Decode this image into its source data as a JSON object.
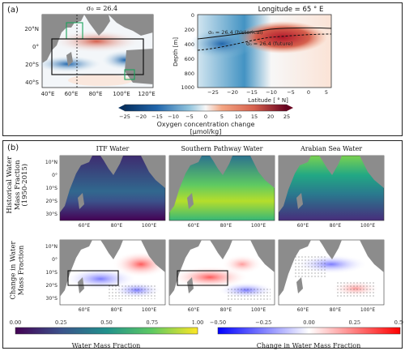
{
  "figure": {
    "panel_a_tag": "(a)",
    "panel_b_tag": "(b)"
  },
  "panel_a": {
    "map_title": "σ₀ = 26.4",
    "map_lat_ticks": [
      "20°N",
      "0°",
      "20°S",
      "40°S"
    ],
    "map_lon_ticks": [
      "40°E",
      "60°E",
      "80°E",
      "100°E",
      "120°E"
    ],
    "section_title": "Longitude = 65 ° E",
    "section_xlabel": "Latitude [ ° N]",
    "section_ylabel": "Depth [m]",
    "section_x_ticks": [
      "−25",
      "−20",
      "−15",
      "−10",
      "−5",
      "0",
      "5"
    ],
    "section_y_ticks": [
      "0",
      "200",
      "400",
      "600",
      "800",
      "1000"
    ],
    "label_historical": "σ₀ = 26.4 (historical)",
    "label_future": "σ₀ = 26.4 (future)",
    "colorbar_ticks": [
      "−25",
      "−20",
      "−15",
      "−10",
      "−5",
      "0",
      "5",
      "10",
      "15",
      "20",
      "25"
    ],
    "colorbar_label_1": "Oxygen concentration change",
    "colorbar_label_2": "[μmol/kg]"
  },
  "panel_b": {
    "columns": [
      "ITF Water",
      "Southern Pathway Water",
      "Arabian Sea Water"
    ],
    "row1_label_1": "Historical Water",
    "row1_label_2": "Mass Fraction",
    "row1_label_3": "(1950-2015)",
    "row2_label_1": "Change in Water",
    "row2_label_2": "Mass Fraction",
    "lat_ticks": [
      "10°N",
      "0°",
      "10°S",
      "20°S",
      "30°S"
    ],
    "lon_ticks": [
      "60°E",
      "80°E",
      "100°E"
    ],
    "cbar_left_ticks": [
      "0.00",
      "0.25",
      "0.50",
      "0.75",
      "1.00"
    ],
    "cbar_left_label": "Water Mass Fraction",
    "cbar_right_ticks": [
      "−0.50",
      "−0.25",
      "0.00",
      "0.25",
      "0.50"
    ],
    "cbar_right_label": "Change in Water Mass Fraction"
  },
  "colors": {
    "land": "#8c8c8c",
    "diverging_negative": "#2166ac",
    "diverging_positive": "#b2182b",
    "viridis_low": "#440154",
    "viridis_high": "#fde725",
    "bwr_low": "#0000ff",
    "bwr_high": "#ff0000"
  }
}
